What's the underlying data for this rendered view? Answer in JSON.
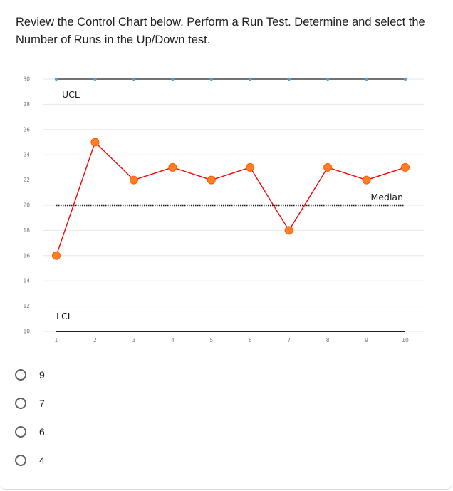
{
  "question": {
    "text": "Review the Control Chart below. Perform a Run Test. Determine and select the Number of Runs in the Up/Down test."
  },
  "chart_data": {
    "type": "line",
    "x": [
      1,
      2,
      3,
      4,
      5,
      6,
      7,
      8,
      9,
      10
    ],
    "x_tick_labels": [
      "1",
      "2",
      "3",
      "4",
      "5",
      "6",
      "7",
      "8",
      "9",
      "10"
    ],
    "y_ticks": [
      10,
      12,
      14,
      16,
      18,
      20,
      22,
      24,
      26,
      28,
      30
    ],
    "ylim": [
      10,
      30
    ],
    "xlim": [
      1,
      10
    ],
    "grid": true,
    "series": [
      {
        "values": [
          16,
          25,
          22,
          23,
          22,
          23,
          18,
          23,
          22,
          23
        ],
        "color": "#ff0000",
        "marker_color": "#ff7f27"
      },
      {
        "values": [
          30,
          30,
          30,
          30,
          30,
          30,
          30,
          30,
          30,
          30
        ],
        "color": "#1f1f1f",
        "marker_color": "#4ea1dc"
      }
    ],
    "reference_lines": [
      {
        "label": "UCL",
        "y": 30
      },
      {
        "label": "Median",
        "y": 20
      },
      {
        "label": "LCL",
        "y": 10
      }
    ],
    "title": "",
    "xlabel": "",
    "ylabel": ""
  },
  "options": [
    {
      "label": "9"
    },
    {
      "label": "7"
    },
    {
      "label": "6"
    },
    {
      "label": "4"
    }
  ]
}
